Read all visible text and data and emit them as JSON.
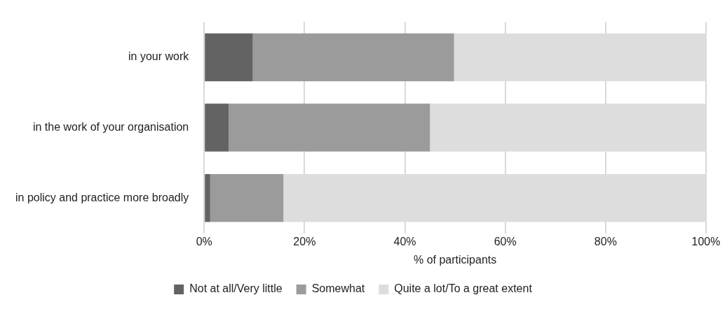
{
  "chart_data": {
    "type": "bar",
    "orientation": "horizontal",
    "stacked": true,
    "xlabel": "% of participants",
    "categories": [
      "in your work",
      "in the work of your organisation",
      "in policy and practice more broadly"
    ],
    "series": [
      {
        "name": "Not at all/Very little",
        "color": "#636363",
        "values": [
          9.7,
          4.9,
          1.2
        ]
      },
      {
        "name": "Somewhat",
        "color": "#9b9b9b",
        "values": [
          40.1,
          40.1,
          14.6
        ]
      },
      {
        "name": "Quite a lot/To a great extent",
        "color": "#dcdddc",
        "values": [
          50.2,
          55,
          84.2
        ]
      }
    ],
    "xlim": [
      0,
      100
    ],
    "xticks": [
      {
        "value": 0,
        "label": "0%"
      },
      {
        "value": 20,
        "label": "20%"
      },
      {
        "value": 40,
        "label": "40%"
      },
      {
        "value": 60,
        "label": "60%"
      },
      {
        "value": 80,
        "label": "80%"
      },
      {
        "value": 100,
        "label": "100%"
      }
    ],
    "grid": "x",
    "legend": "bottom"
  }
}
